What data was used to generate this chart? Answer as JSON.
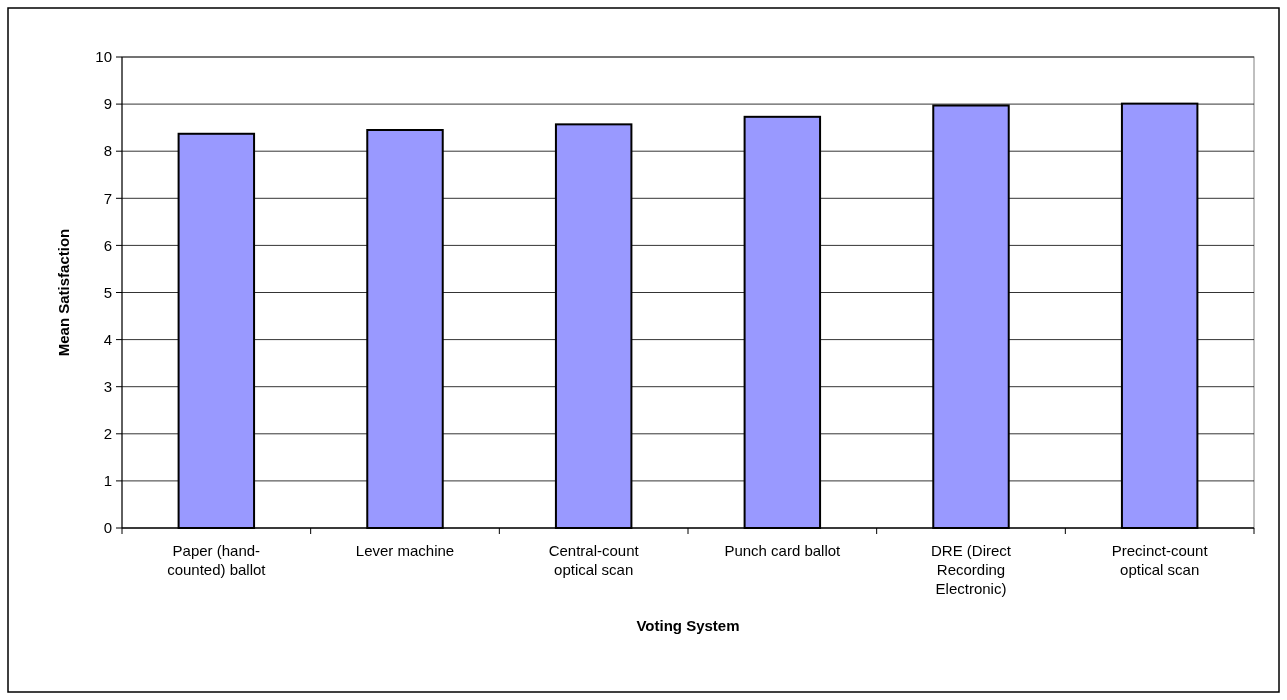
{
  "chart_data": {
    "type": "bar",
    "xlabel": "Voting System",
    "ylabel": "Mean Satisfaction",
    "categories": [
      "Paper (hand-counted) ballot",
      "Lever machine",
      "Central-count optical scan",
      "Punch card ballot",
      "DRE (Direct Recording Electronic)",
      "Precinct-count optical scan"
    ],
    "values": [
      8.37,
      8.45,
      8.57,
      8.73,
      8.97,
      9.01
    ],
    "color": "#9999ff",
    "ylim": [
      0,
      10
    ],
    "yticks": [
      0,
      1,
      2,
      3,
      4,
      5,
      6,
      7,
      8,
      9,
      10
    ],
    "grid": "y"
  }
}
